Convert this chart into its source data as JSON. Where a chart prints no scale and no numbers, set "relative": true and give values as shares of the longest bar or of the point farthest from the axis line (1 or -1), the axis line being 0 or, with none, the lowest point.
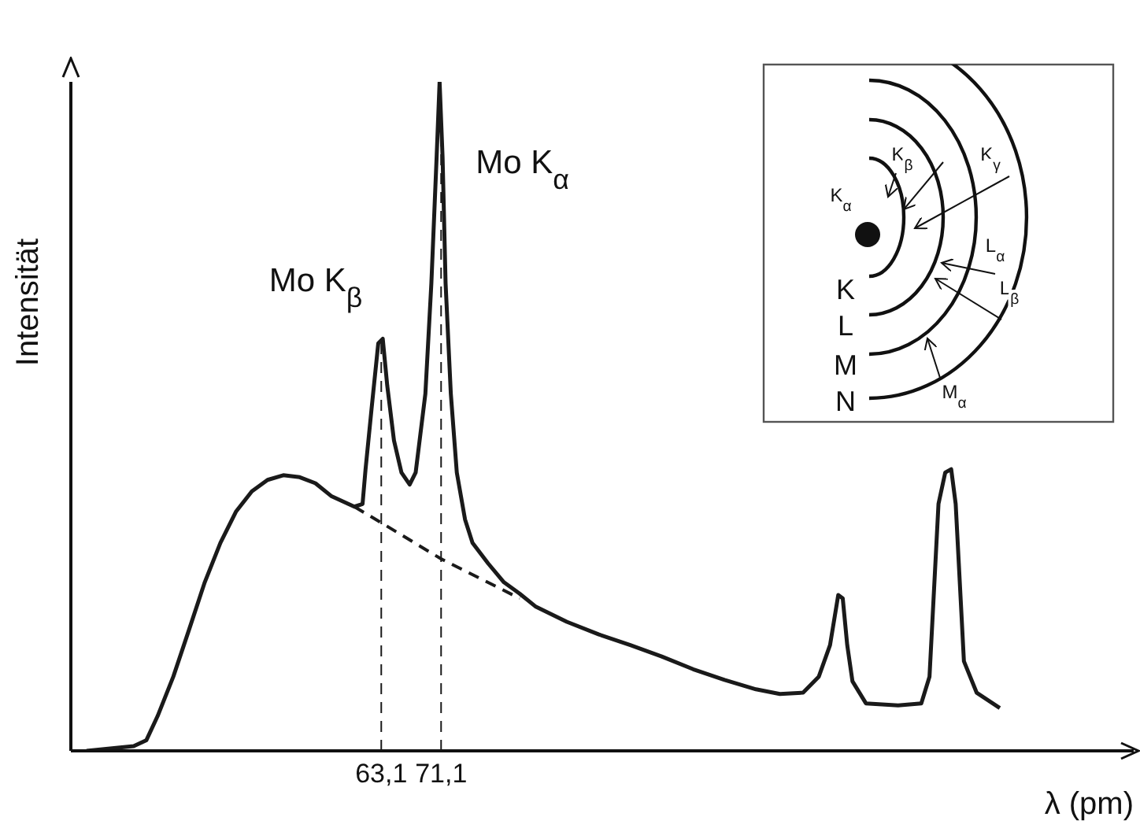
{
  "chart_data": {
    "type": "line",
    "relative": true,
    "xlabel": "λ   (pm)",
    "ylabel": "Intensität",
    "xlim": [
      21.6,
      163.7
    ],
    "xticks": [
      {
        "value": 63.1,
        "label": "63,1"
      },
      {
        "value": 71.1,
        "label": "71,1"
      }
    ],
    "tick_labels": "x",
    "marker": "none",
    "series": [
      {
        "color": "#1a1a1a",
        "line_style": "solid",
        "x": [
          23.7,
          30.0,
          31.7,
          33.2,
          35.3,
          37.4,
          39.5,
          41.6,
          43.7,
          45.8,
          47.9,
          50.0,
          52.2,
          54.3,
          56.4,
          59.5,
          60.6,
          61.0,
          61.8,
          62.7,
          63.3,
          63.9,
          64.8,
          65.8,
          66.9,
          67.7,
          69.0,
          69.8,
          70.5,
          70.9,
          71.3,
          71.7,
          72.4,
          73.2,
          74.3,
          75.3,
          77.4,
          79.5,
          81.6,
          83.7,
          87.9,
          92.2,
          96.4,
          100.6,
          104.8,
          109.0,
          113.2,
          116.4,
          119.5,
          121.6,
          123.1,
          124.2,
          124.8,
          125.4,
          126.1,
          127.9,
          132.2,
          135.3,
          136.4,
          137.6,
          138.5,
          139.3,
          139.9,
          141.0,
          142.7,
          145.8
        ],
        "values": [
          0,
          0.007,
          0.016,
          0.052,
          0.111,
          0.181,
          0.252,
          0.311,
          0.358,
          0.388,
          0.405,
          0.412,
          0.409,
          0.4,
          0.381,
          0.365,
          0.369,
          0.421,
          0.511,
          0.609,
          0.616,
          0.546,
          0.464,
          0.416,
          0.398,
          0.416,
          0.534,
          0.699,
          0.887,
          1,
          0.887,
          0.699,
          0.534,
          0.416,
          0.346,
          0.311,
          0.28,
          0.252,
          0.235,
          0.216,
          0.193,
          0.174,
          0.158,
          0.141,
          0.122,
          0.106,
          0.092,
          0.085,
          0.087,
          0.111,
          0.158,
          0.233,
          0.228,
          0.158,
          0.104,
          0.071,
          0.068,
          0.071,
          0.111,
          0.369,
          0.416,
          0.421,
          0.369,
          0.134,
          0.087,
          0.064
        ]
      },
      {
        "color": "#1a1a1a",
        "line_style": "dashed",
        "x": [
          59.5,
          63.1,
          71.1,
          81.6
        ],
        "values": [
          0.365,
          0.341,
          0.287,
          0.228
        ]
      }
    ],
    "ref_lines": [
      {
        "axis": "x",
        "value": 63.1,
        "line_style": "dashed",
        "color": "#1a1a1a"
      },
      {
        "axis": "x",
        "value": 71.1,
        "line_style": "dashed",
        "color": "#1a1a1a"
      }
    ],
    "annotations": [
      {
        "text": "Mo K$_{β}$",
        "x": 63.1,
        "y": 0.616
      },
      {
        "text": "Mo K$_{α}$",
        "x": 71.1,
        "y": 1
      },
      "K",
      "L",
      "M",
      "N",
      "K$_{α}$",
      "K$_{β}$",
      "K$_{γ}$",
      "L$_{α}$",
      "L$_{β}$",
      "M$_{α}$"
    ]
  }
}
